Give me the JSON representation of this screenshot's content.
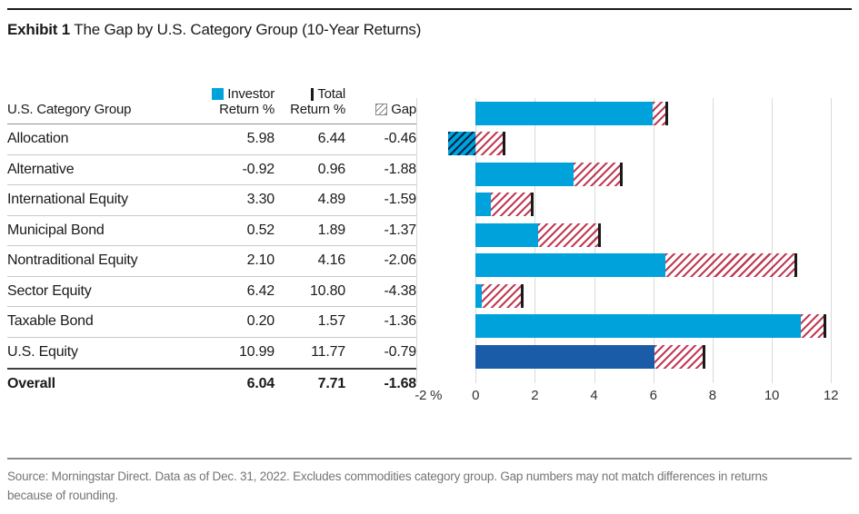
{
  "header": {
    "exhibit_label": "Exhibit 1",
    "title": "The Gap by U.S. Category Group (10-Year Returns)"
  },
  "table": {
    "group_header": "U.S. Category Group",
    "columns": [
      {
        "line1": "Investor",
        "line2": "Return %"
      },
      {
        "line1": "Total",
        "line2": "Return %"
      },
      {
        "line1": "Gap"
      }
    ],
    "rows": [
      {
        "label": "Allocation",
        "investor": "5.98",
        "total": "6.44",
        "gap": "-0.46"
      },
      {
        "label": "Alternative",
        "investor": "-0.92",
        "total": "0.96",
        "gap": "-1.88"
      },
      {
        "label": "International Equity",
        "investor": "3.30",
        "total": "4.89",
        "gap": "-1.59"
      },
      {
        "label": "Municipal Bond",
        "investor": "0.52",
        "total": "1.89",
        "gap": "-1.37"
      },
      {
        "label": "Nontraditional Equity",
        "investor": "2.10",
        "total": "4.16",
        "gap": "-2.06"
      },
      {
        "label": "Sector Equity",
        "investor": "6.42",
        "total": "10.80",
        "gap": "-4.38"
      },
      {
        "label": "Taxable Bond",
        "investor": "0.20",
        "total": "1.57",
        "gap": "-1.36"
      },
      {
        "label": "U.S. Equity",
        "investor": "10.99",
        "total": "11.77",
        "gap": "-0.79"
      },
      {
        "label": "Overall",
        "investor": "6.04",
        "total": "7.71",
        "gap": "-1.68"
      }
    ]
  },
  "chart_data": {
    "type": "bar",
    "orientation": "horizontal",
    "title": "The Gap by U.S. Category Group (10-Year Returns)",
    "categories": [
      "Allocation",
      "Alternative",
      "International Equity",
      "Municipal Bond",
      "Nontraditional Equity",
      "Sector Equity",
      "Taxable Bond",
      "U.S. Equity",
      "Overall"
    ],
    "series": [
      {
        "name": "Investor Return %",
        "values": [
          5.98,
          -0.92,
          3.3,
          0.52,
          2.1,
          6.42,
          0.2,
          10.99,
          6.04
        ]
      },
      {
        "name": "Total Return %",
        "values": [
          6.44,
          0.96,
          4.89,
          1.89,
          4.16,
          10.8,
          1.57,
          11.77,
          7.71
        ]
      },
      {
        "name": "Gap",
        "values": [
          -0.46,
          -1.88,
          -1.59,
          -1.37,
          -2.06,
          -4.38,
          -1.36,
          -0.79,
          -1.68
        ]
      }
    ],
    "xlabel": "",
    "ylabel": "",
    "xlim": [
      -2,
      12.7
    ],
    "grid": true,
    "legend_position": "table-header",
    "highlight_category": "Overall",
    "x_ticks": [
      {
        "value": -2,
        "label": "-2 %",
        "align": "start"
      },
      {
        "value": 0,
        "label": "0"
      },
      {
        "value": 2,
        "label": "2"
      },
      {
        "value": 4,
        "label": "4"
      },
      {
        "value": 6,
        "label": "6"
      },
      {
        "value": 8,
        "label": "8"
      },
      {
        "value": 10,
        "label": "10"
      },
      {
        "value": 12,
        "label": "12"
      }
    ]
  },
  "colors": {
    "investor_bar": "#00A2DC",
    "overall_bar": "#1B5CA8",
    "gap_hatch": "#C23B54",
    "total_tick": "#1A1A1A",
    "gridline": "#DADADA"
  },
  "footer": {
    "source_note": "Source: Morningstar Direct. Data as of Dec. 31, 2022. Excludes commodities category group. Gap numbers may not match differences in returns because of rounding."
  }
}
